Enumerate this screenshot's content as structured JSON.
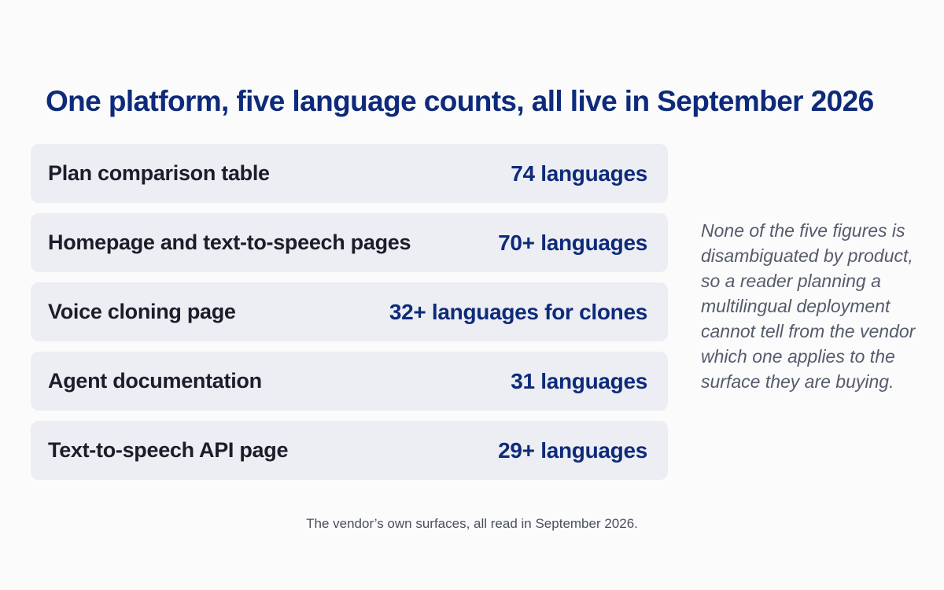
{
  "title": "One platform, five language counts, all live in September 2026",
  "rows": [
    {
      "label": "Plan comparison table",
      "value": "74 languages"
    },
    {
      "label": "Homepage and text-to-speech pages",
      "value": "70+ languages"
    },
    {
      "label": "Voice cloning page",
      "value": "32+ languages for clones"
    },
    {
      "label": "Agent documentation",
      "value": "31 languages"
    },
    {
      "label": "Text-to-speech API page",
      "value": "29+ languages"
    }
  ],
  "note": "None of the five figures is disambiguated by product, so a reader planning a multilingual deployment cannot tell from the vendor which one applies to the surface they are buying.",
  "caption": "The vendor’s own surfaces, all read in September 2026.",
  "colors": {
    "title": "#0e2a7a",
    "value": "#0e2a7a",
    "row_bg": "#eceef3",
    "label": "#1b1e2a",
    "note": "#555b6b"
  }
}
